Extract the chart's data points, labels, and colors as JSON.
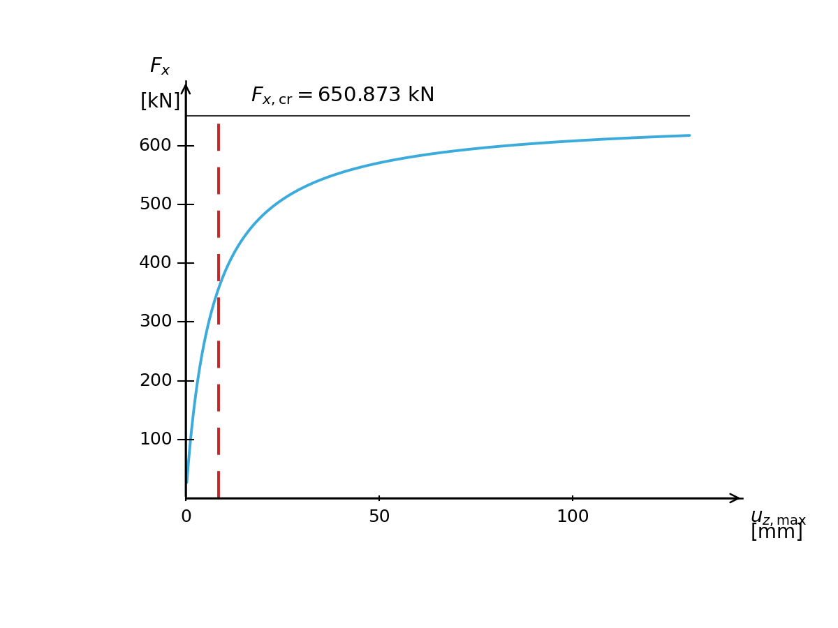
{
  "F_cr": 650.873,
  "u0": 7.0,
  "red_dash_x": 8.5,
  "x_max": 135,
  "y_max": 680,
  "y_ticks": [
    100,
    200,
    300,
    400,
    500,
    600
  ],
  "x_ticks": [
    0,
    50,
    100
  ],
  "curve_color": "#3aabdb",
  "dashed_color": "#CC2222",
  "hline_color": "#333333",
  "curve_lw": 2.8,
  "dashed_lw": 2.8,
  "hline_lw": 1.5,
  "font_size_ticks": 18,
  "font_size_labels": 20,
  "font_size_annot": 21
}
